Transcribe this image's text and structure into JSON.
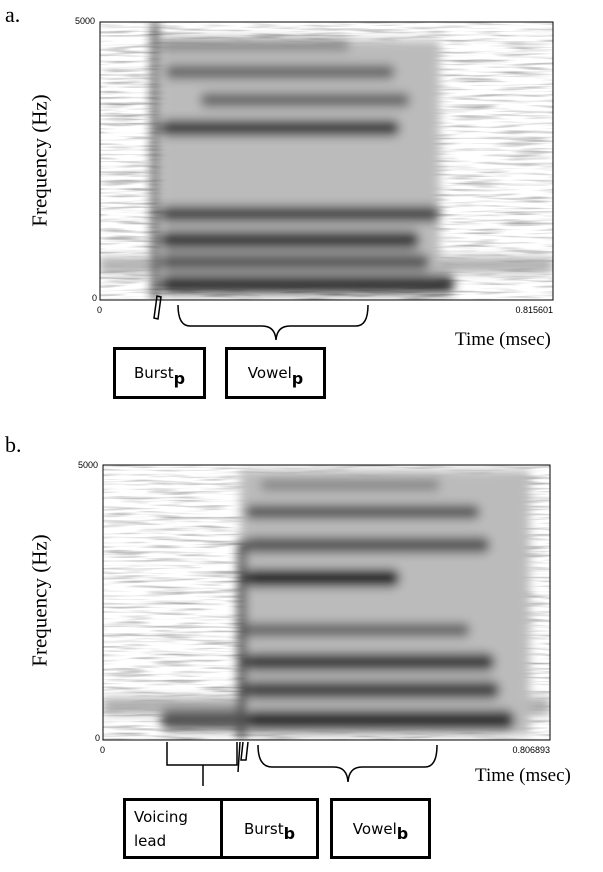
{
  "panels": [
    {
      "label": "a.",
      "y_axis_label": "Frequency (Hz)",
      "y_ticks": [
        "5000",
        "0"
      ],
      "x_ticks": [
        "0",
        "0.815601"
      ],
      "x_axis_label": "Time (msec)",
      "annotations": [
        {
          "text": "Burst",
          "subscript": "p"
        },
        {
          "text": "Vowel",
          "subscript": "p"
        }
      ]
    },
    {
      "label": "b.",
      "y_axis_label": "Frequency (Hz)",
      "y_ticks": [
        "5000",
        "0"
      ],
      "x_ticks": [
        "0",
        "0.806893"
      ],
      "x_axis_label": "Time (msec)",
      "annotations": [
        {
          "text": "Voicing lead"
        },
        {
          "text": "Burst",
          "subscript": "b"
        },
        {
          "text": "Vowel",
          "subscript": "b"
        }
      ]
    }
  ]
}
